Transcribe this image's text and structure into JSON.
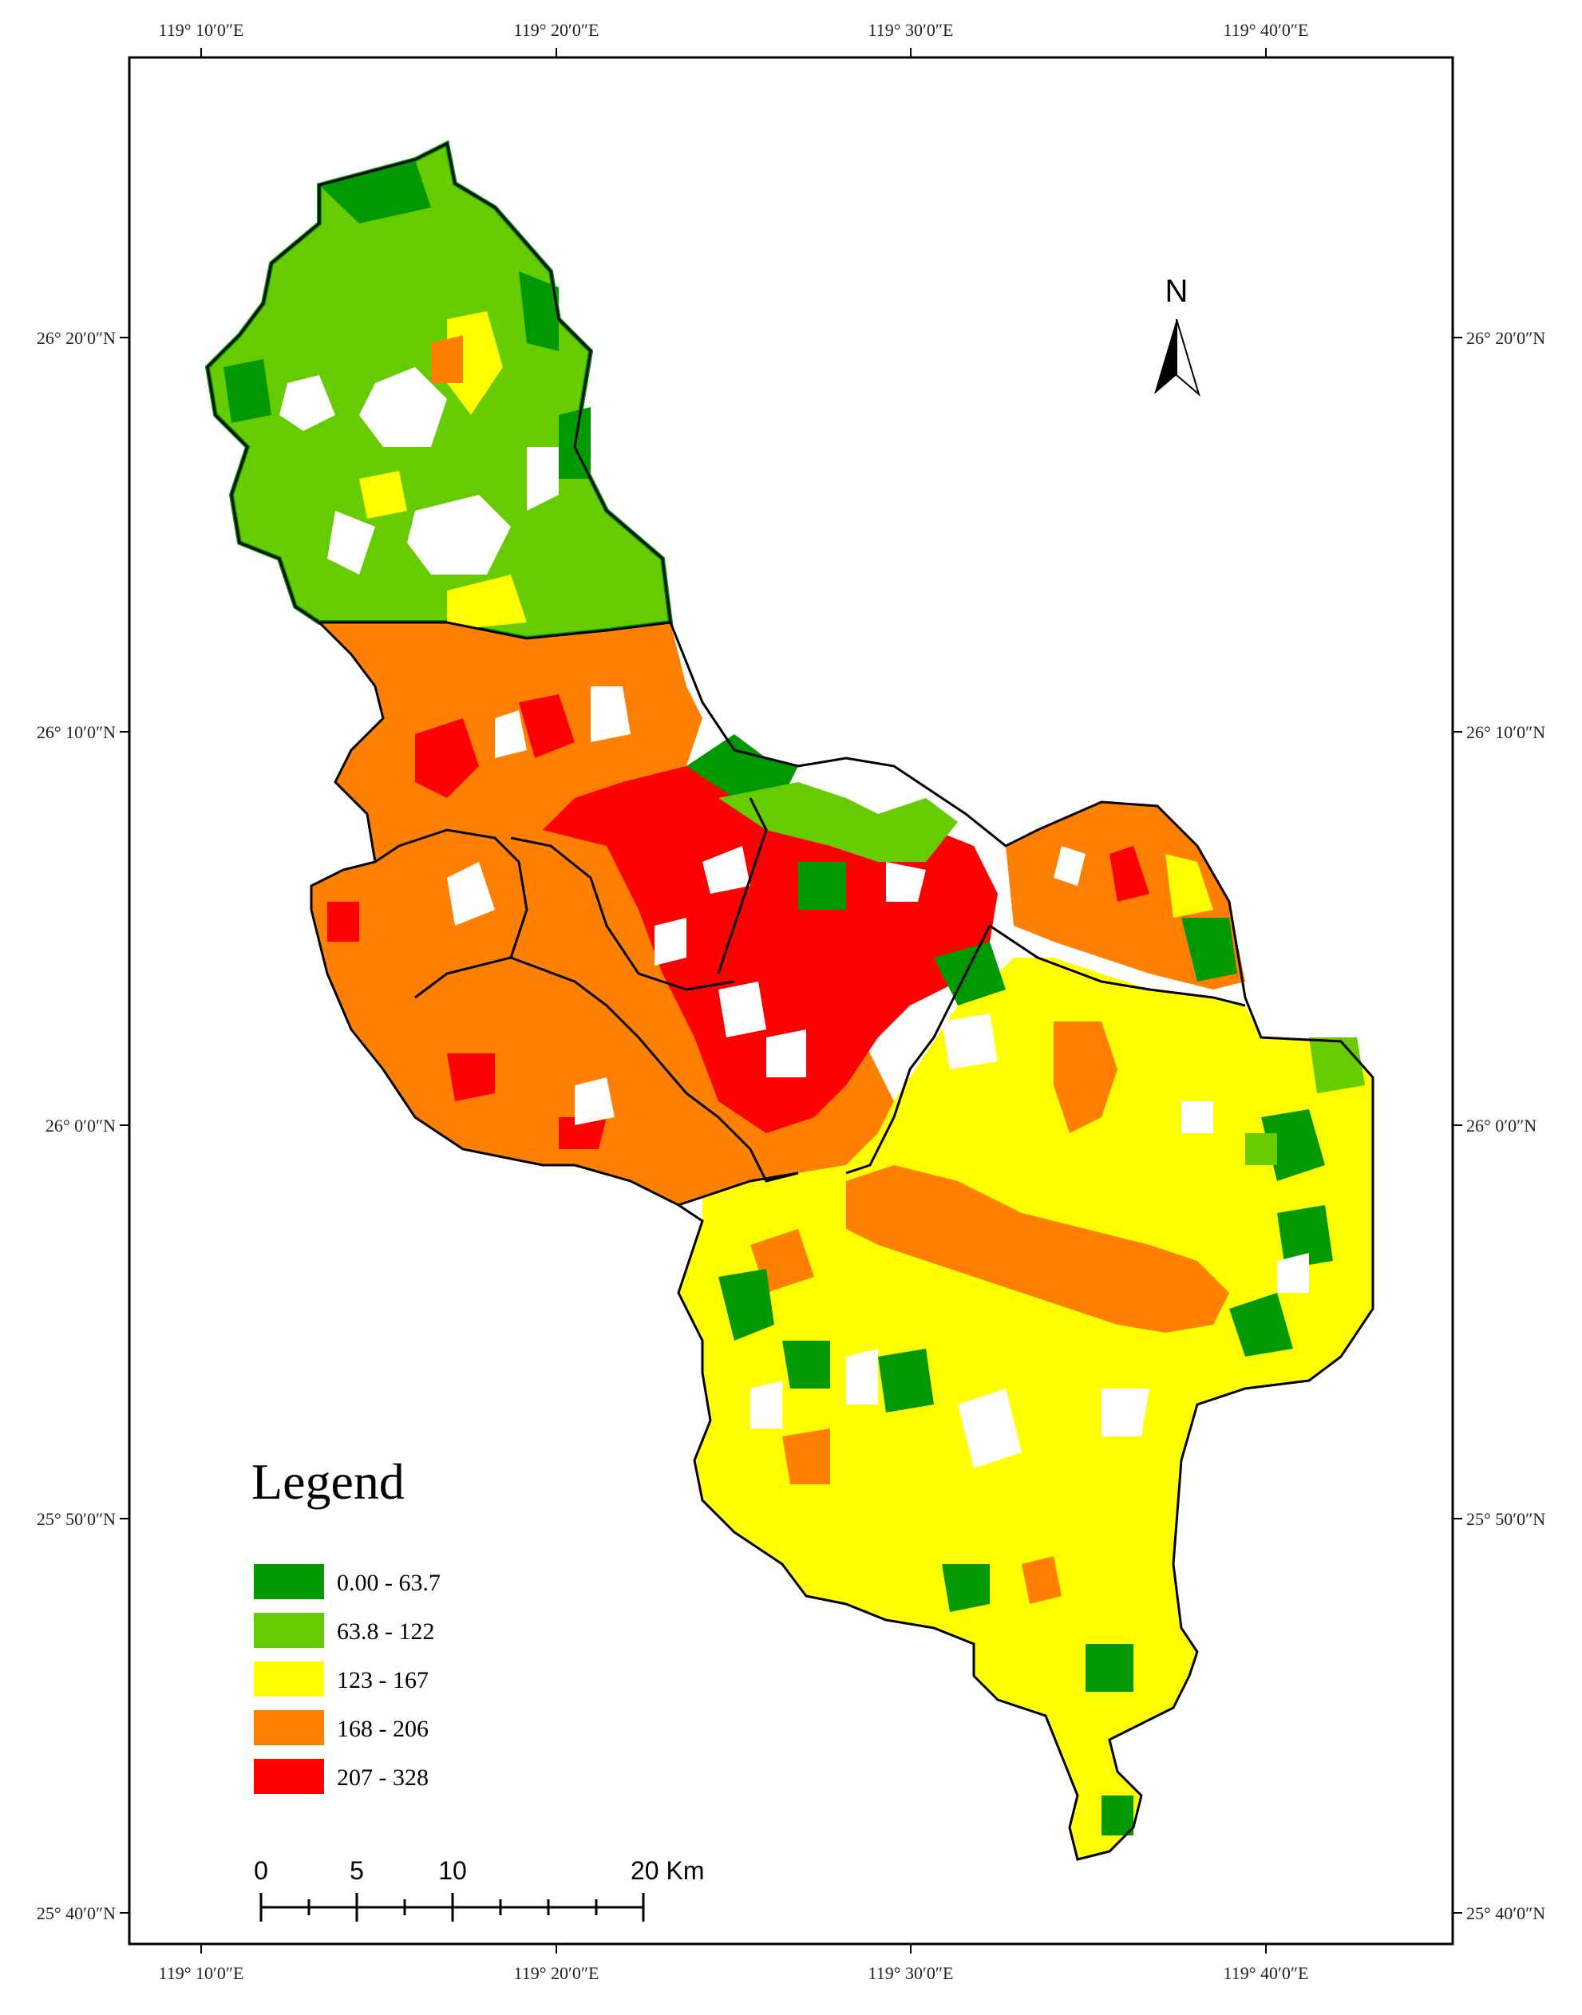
{
  "map": {
    "top_ticks": [
      "119° 10′0″E",
      "119° 20′0″E",
      "119° 30′0″E",
      "119° 40′0″E"
    ],
    "bottom_ticks": [
      "119° 10′0″E",
      "119° 20′0″E",
      "119° 30′0″E",
      "119° 40′0″E"
    ],
    "left_ticks": [
      "26° 20′0″N",
      "26° 10′0″N",
      "26° 0′0″N",
      "25° 50′0″N",
      "25° 40′0″N"
    ],
    "right_ticks": [
      "26° 20′0″N",
      "26° 10′0″N",
      "26° 0′0″N",
      "25° 50′0″N",
      "25° 40′0″N"
    ]
  },
  "north_arrow": {
    "label": "N"
  },
  "legend": {
    "title": "Legend",
    "items": [
      {
        "label": "0.00 - 63.7",
        "color": "#009900"
      },
      {
        "label": "63.8 - 122",
        "color": "#66cc00"
      },
      {
        "label": "123 - 167",
        "color": "#ffff00"
      },
      {
        "label": "168 - 206",
        "color": "#ff8000"
      },
      {
        "label": "207 - 328",
        "color": "#ff0000"
      }
    ]
  },
  "scale_bar": {
    "labels": [
      "0",
      "5",
      "10",
      "20 Km"
    ]
  },
  "colors": {
    "green_dark": "#009900",
    "green_light": "#66cc00",
    "yellow": "#ffff00",
    "orange": "#ff8000",
    "red": "#ff0000"
  }
}
